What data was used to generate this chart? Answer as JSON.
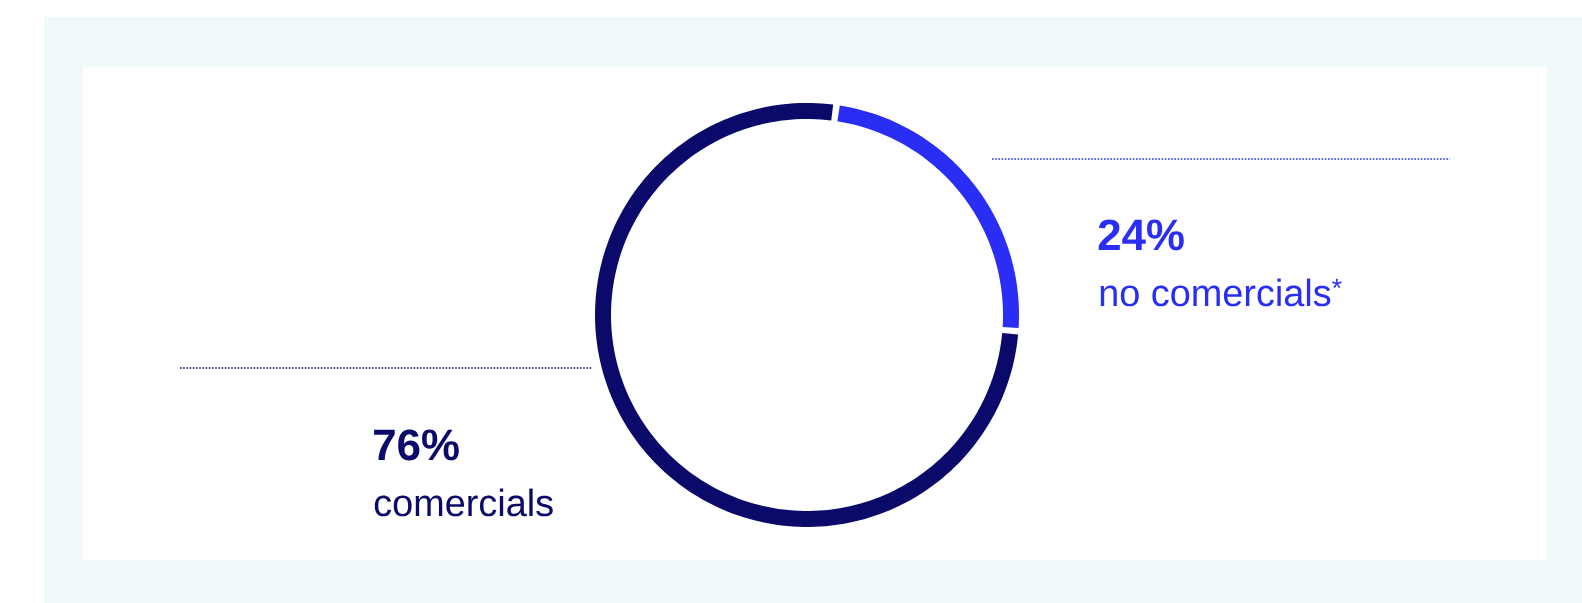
{
  "chart_data": {
    "type": "donut",
    "categories": [
      "no comercials$^{*}$",
      "comercials"
    ],
    "values": [
      24,
      76
    ],
    "value_labels": [
      "24%",
      "76%"
    ],
    "colors": [
      "#2a2ef5",
      "#0b0a6b"
    ]
  }
}
